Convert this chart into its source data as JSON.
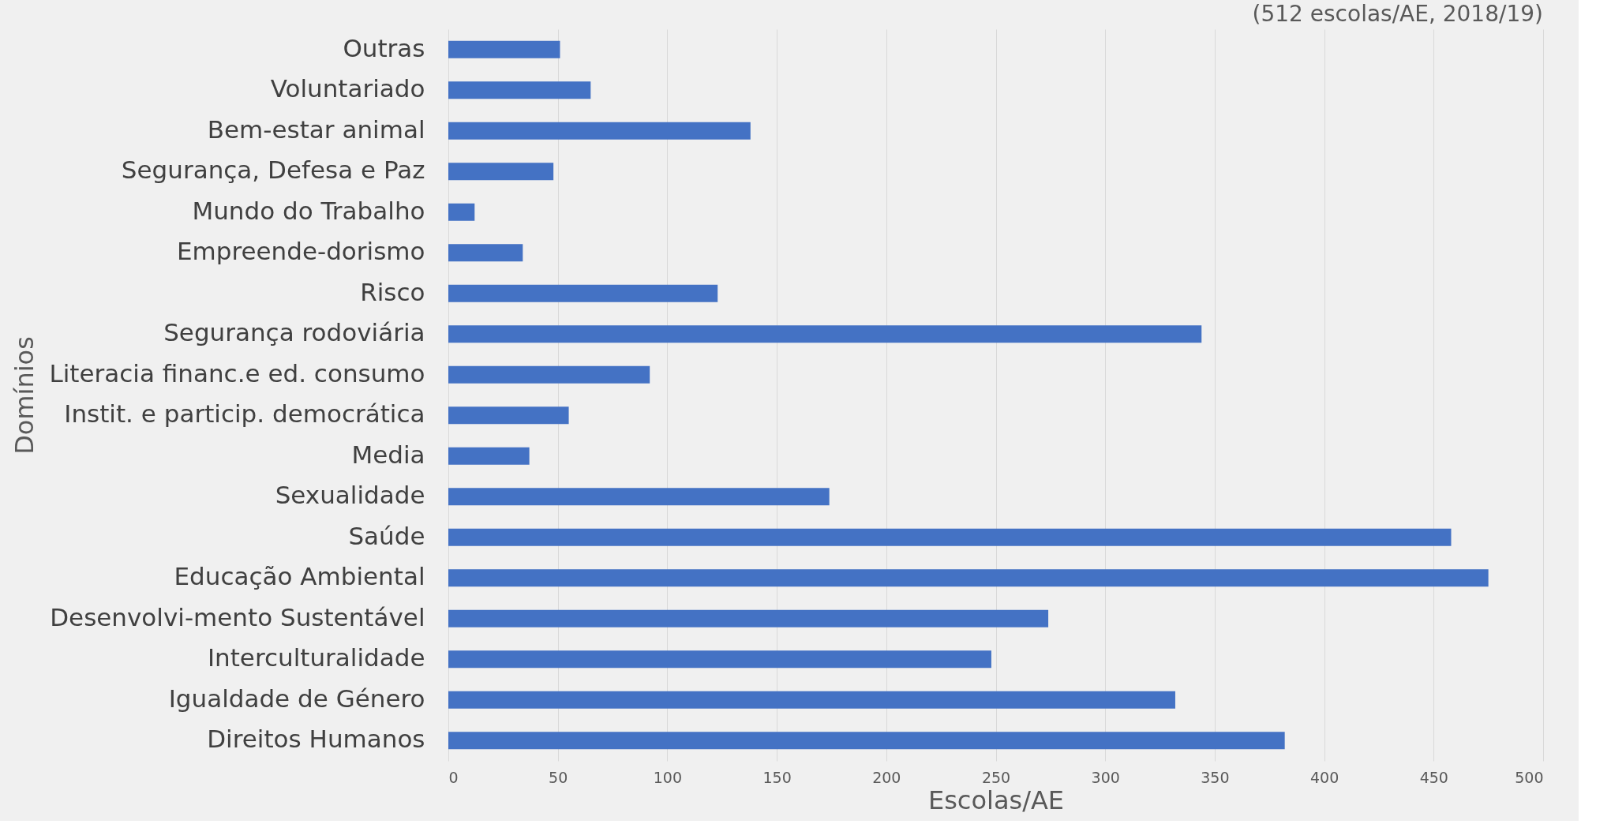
{
  "chart_data": {
    "type": "bar",
    "orientation": "horizontal",
    "title": "(512 escolas/AE, 2018/19)",
    "xlabel": "Escolas/AE",
    "ylabel": "Domínios",
    "categories": [
      "Outras",
      "Voluntariado",
      "Bem-estar animal",
      "Segurança, Defesa e Paz",
      "Mundo do Trabalho",
      "Empreende-dorismo",
      "Risco",
      "Segurança rodoviária",
      "Literacia financ.e ed. consumo",
      "Instit. e particip. democrática",
      "Media",
      "Sexualidade",
      "Saúde",
      "Educação Ambiental",
      "Desenvolvi-mento Sustentável",
      "Interculturalidade",
      "Igualdade de Género",
      "Direitos Humanos"
    ],
    "values": [
      51,
      65,
      138,
      48,
      12,
      34,
      123,
      344,
      92,
      55,
      37,
      174,
      458,
      475,
      274,
      248,
      332,
      382
    ],
    "color": "#4472c4",
    "xlim": [
      0,
      500
    ],
    "xticks": [
      0,
      50,
      100,
      150,
      200,
      250,
      300,
      350,
      400,
      450,
      500
    ],
    "grid": "x"
  }
}
